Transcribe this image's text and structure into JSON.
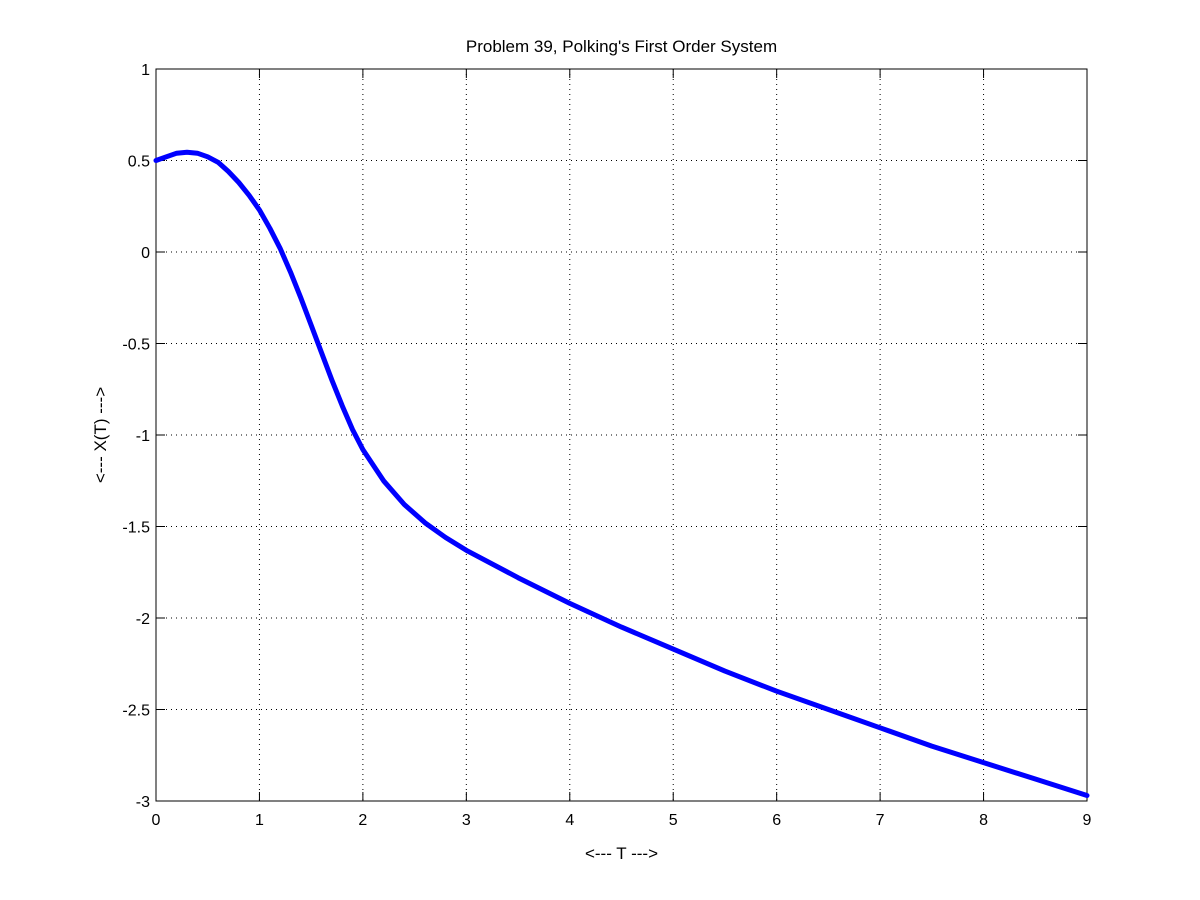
{
  "chart_data": {
    "type": "line",
    "title": "Problem 39, Polking's First Order System",
    "xlabel": "<--- T --->",
    "ylabel": "<--- X(T) --->",
    "xlim": [
      0,
      9
    ],
    "ylim": [
      -3,
      1
    ],
    "xticks": [
      0,
      1,
      2,
      3,
      4,
      5,
      6,
      7,
      8,
      9
    ],
    "yticks": [
      1,
      0.5,
      0,
      -0.5,
      -1,
      -1.5,
      -2,
      -2.5,
      -3
    ],
    "xtick_labels": [
      "0",
      "1",
      "2",
      "3",
      "4",
      "5",
      "6",
      "7",
      "8",
      "9"
    ],
    "ytick_labels": [
      "1",
      "0.5",
      "0",
      "-0.5",
      "-1",
      "-1.5",
      "-2",
      "-2.5",
      "-3"
    ],
    "grid": true,
    "series": [
      {
        "color": "#0000ff",
        "x": [
          0,
          0.1,
          0.2,
          0.3,
          0.4,
          0.5,
          0.6,
          0.7,
          0.8,
          0.9,
          1.0,
          1.1,
          1.2,
          1.3,
          1.4,
          1.5,
          1.6,
          1.7,
          1.8,
          1.9,
          2.0,
          2.2,
          2.4,
          2.6,
          2.8,
          3.0,
          3.5,
          4.0,
          4.5,
          5.0,
          5.5,
          6.0,
          6.5,
          7.0,
          7.5,
          8.0,
          8.5,
          9.0
        ],
        "y": [
          0.5,
          0.52,
          0.54,
          0.545,
          0.54,
          0.52,
          0.49,
          0.44,
          0.38,
          0.31,
          0.23,
          0.13,
          0.02,
          -0.11,
          -0.25,
          -0.4,
          -0.55,
          -0.7,
          -0.84,
          -0.97,
          -1.08,
          -1.25,
          -1.38,
          -1.48,
          -1.56,
          -1.63,
          -1.78,
          -1.92,
          -2.05,
          -2.17,
          -2.29,
          -2.4,
          -2.5,
          -2.6,
          -2.7,
          -2.79,
          -2.88,
          -2.97
        ]
      }
    ]
  }
}
